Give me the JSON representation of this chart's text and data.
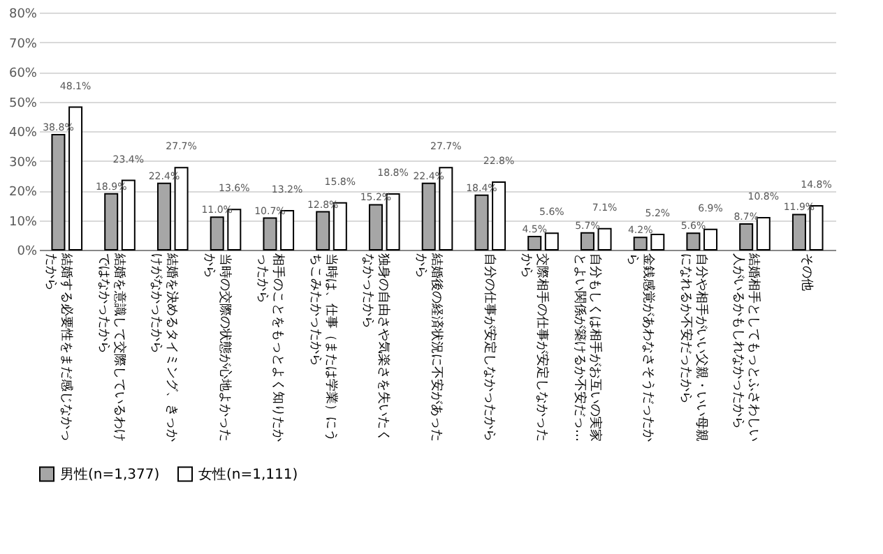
{
  "chart_data": {
    "type": "bar",
    "categories": [
      "結婚する必要性をまだ感じなかったから",
      "結婚を意識して交際しているわけではなかったから",
      "結婚を決めるタイミング、きっかけがなかったから",
      "当時の交際の状態が心地よかったから",
      "相手のことをもっとよく知りたかったから",
      "当時は、仕事（または学業）にうちこみたかったから",
      "独身の自由さや気楽さを失いたくなかったから",
      "結婚後の経済状況に不安があったから",
      "自分の仕事が安定しなかったから",
      "交際相手の仕事が安定しなかったから",
      "自分もしくは相手がお互いの実家とよい関係が築けるか不安だっ…",
      "金銭感覚があわなさそうだったから",
      "自分や相手がいい父親・いい母親になれるか不安だったから",
      "結婚相手としてもっとふさわしい人がいるかもしれなかったから",
      "その他"
    ],
    "series": [
      {
        "name": "男性(n=1,377)",
        "color": "#a6a6a6",
        "values": [
          38.8,
          18.9,
          22.4,
          11.0,
          10.7,
          12.8,
          15.2,
          22.4,
          18.4,
          4.5,
          5.7,
          4.2,
          5.6,
          8.7,
          11.9
        ],
        "value_labels": [
          "38.8%",
          "18.9%",
          "22.4%",
          "11.0%",
          "10.7%",
          "12.8%",
          "15.2%",
          "22.4%",
          "18.4%",
          "4.5%",
          "5.7%",
          "4.2%",
          "5.6%",
          "8.7%",
          "11.9%"
        ]
      },
      {
        "name": "女性(n=1,111)",
        "color": "#ffffff",
        "values": [
          48.1,
          23.4,
          27.7,
          13.6,
          13.2,
          15.8,
          18.8,
          27.7,
          22.8,
          5.6,
          7.1,
          5.2,
          6.9,
          10.8,
          14.8
        ],
        "value_labels": [
          "48.1%",
          "23.4%",
          "27.7%",
          "13.6%",
          "13.2%",
          "15.8%",
          "18.8%",
          "27.7%",
          "22.8%",
          "5.6%",
          "7.1%",
          "5.2%",
          "6.9%",
          "10.8%",
          "14.8%"
        ]
      }
    ],
    "ylim": [
      0,
      80
    ],
    "yticks": [
      {
        "value": 0,
        "label": "0%"
      },
      {
        "value": 10,
        "label": "10%"
      },
      {
        "value": 20,
        "label": "20%"
      },
      {
        "value": 30,
        "label": "30%"
      },
      {
        "value": 40,
        "label": "40%"
      },
      {
        "value": 50,
        "label": "50%"
      },
      {
        "value": 60,
        "label": "60%"
      },
      {
        "value": 70,
        "label": "70%"
      },
      {
        "value": 80,
        "label": "80%"
      }
    ],
    "grid": "y",
    "legend": "bottom"
  }
}
